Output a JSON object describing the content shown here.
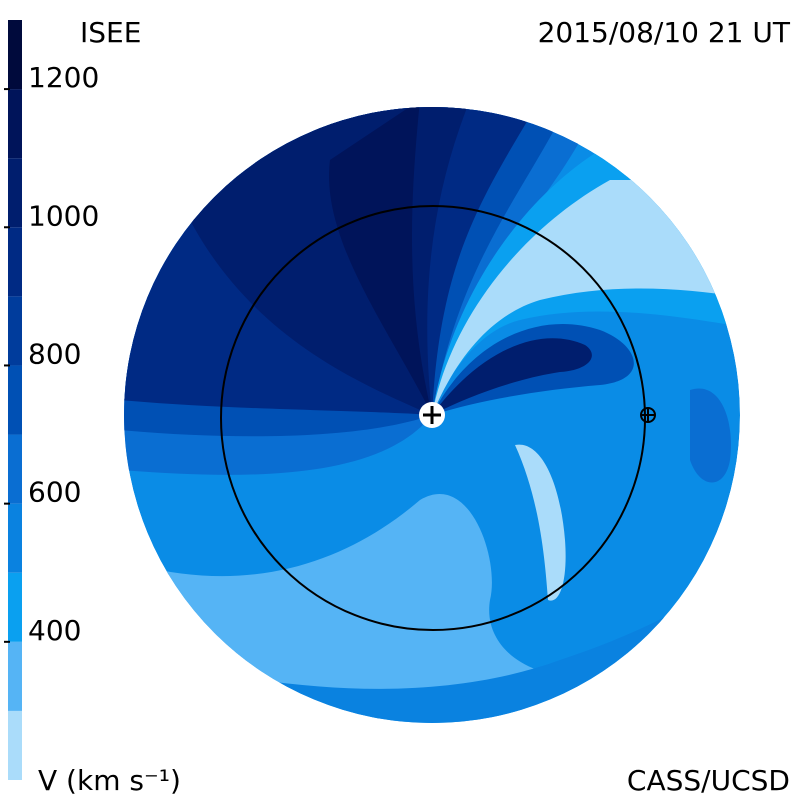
{
  "chart_data": {
    "type": "velocity-map",
    "title": "ISEE",
    "date_label": "2015/08/10 21 UT",
    "credit": "CASS/UCSD",
    "colorbar": {
      "label": "V (km s⁻¹)",
      "lim": [
        200,
        1300
      ],
      "ticks": [
        400,
        600,
        800,
        1000,
        1200
      ],
      "levels": [
        200,
        300,
        400,
        500,
        600,
        700,
        800,
        900,
        1000,
        1100,
        1200,
        1300
      ],
      "colors": [
        "#aadcfa",
        "#55b4f5",
        "#0aa0f0",
        "#0a82e0",
        "#0a6ed2",
        "#0050b4",
        "#003c9c",
        "#002a84",
        "#001e6e",
        "#00145a",
        "#000a3c"
      ]
    }
  }
}
